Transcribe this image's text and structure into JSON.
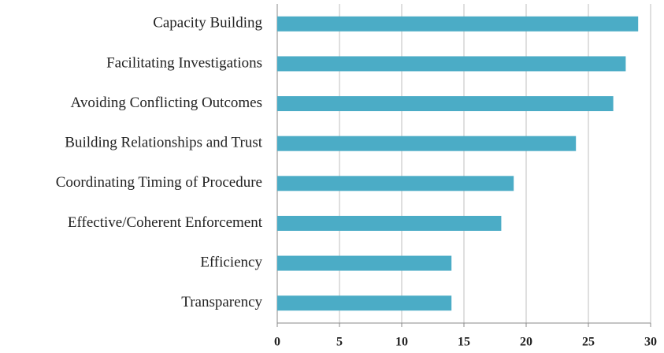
{
  "chart_data": {
    "type": "bar",
    "orientation": "horizontal",
    "categories": [
      "Capacity Building",
      "Facilitating Investigations",
      "Avoiding Conflicting Outcomes",
      "Building Relationships and Trust",
      "Coordinating Timing of Procedure",
      "Effective/Coherent Enforcement",
      "Efficiency",
      "Transparency"
    ],
    "values": [
      29,
      28,
      27,
      24,
      19,
      18,
      14,
      14
    ],
    "color": "#4bacc6",
    "xlim": [
      0,
      30
    ],
    "xticks": [
      0,
      5,
      10,
      15,
      20,
      25,
      30
    ],
    "grid": true
  }
}
